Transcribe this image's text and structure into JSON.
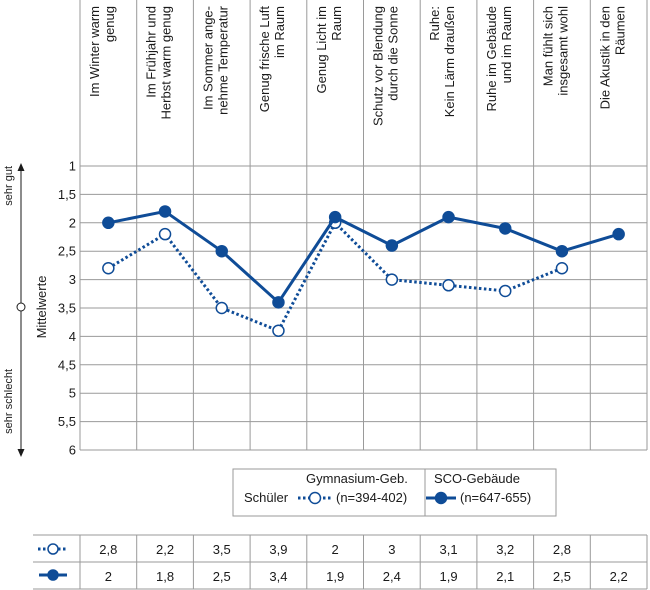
{
  "chart_data": {
    "type": "line",
    "categories": [
      [
        "Im Winter warm",
        "genug"
      ],
      [
        "Im Frühjahr und",
        "Herbst warm genug"
      ],
      [
        "Im Sommer ange-",
        "nehme Temperatur"
      ],
      [
        "Genug frische Luft",
        "im Raum"
      ],
      [
        "Genug Licht im",
        "Raum"
      ],
      [
        "Schutz vor Blendung",
        "durch die Sonne"
      ],
      [
        "Ruhe:",
        "Kein Lärm draußen"
      ],
      [
        "Ruhe im Gebäude",
        "und im Raum"
      ],
      [
        "Man fühlt sich",
        "insgesamt wohl"
      ],
      [
        "Die Akustik in den",
        "Räumen"
      ]
    ],
    "ylabel": "Mittelwerte",
    "ylim": [
      1,
      6
    ],
    "yticks": [
      "1",
      "1,5",
      "2",
      "2,5",
      "3",
      "3,5",
      "4",
      "4,5",
      "5",
      "5,5",
      "6"
    ],
    "y_axis_top": "sehr gut",
    "y_axis_bottom": "sehr schlecht",
    "grid": true,
    "series": [
      {
        "name": "Gymnasium-Geb.",
        "n": "(n=394-402)",
        "marker": "open",
        "values": [
          2.8,
          2.2,
          3.5,
          3.9,
          2,
          3,
          3.1,
          3.2,
          2.8,
          null
        ],
        "labels": [
          "2,8",
          "2,2",
          "3,5",
          "3,9",
          "2",
          "3",
          "3,1",
          "3,2",
          "2,8",
          ""
        ]
      },
      {
        "name": "SCO-Gebäude",
        "n": "(n=647-655)",
        "marker": "filled",
        "values": [
          2,
          1.8,
          2.5,
          3.4,
          1.9,
          2.4,
          1.9,
          2.1,
          2.5,
          2.2
        ],
        "labels": [
          "2",
          "1,8",
          "2,5",
          "3,4",
          "1,9",
          "2,4",
          "1,9",
          "2,1",
          "2,5",
          "2,2"
        ]
      }
    ],
    "legend": {
      "group_label": "Schüler",
      "position": "bottom-right"
    }
  },
  "colors": {
    "primary": "#0f4c97",
    "grid": "#9a9a9a",
    "text": "#1a1a1a"
  }
}
